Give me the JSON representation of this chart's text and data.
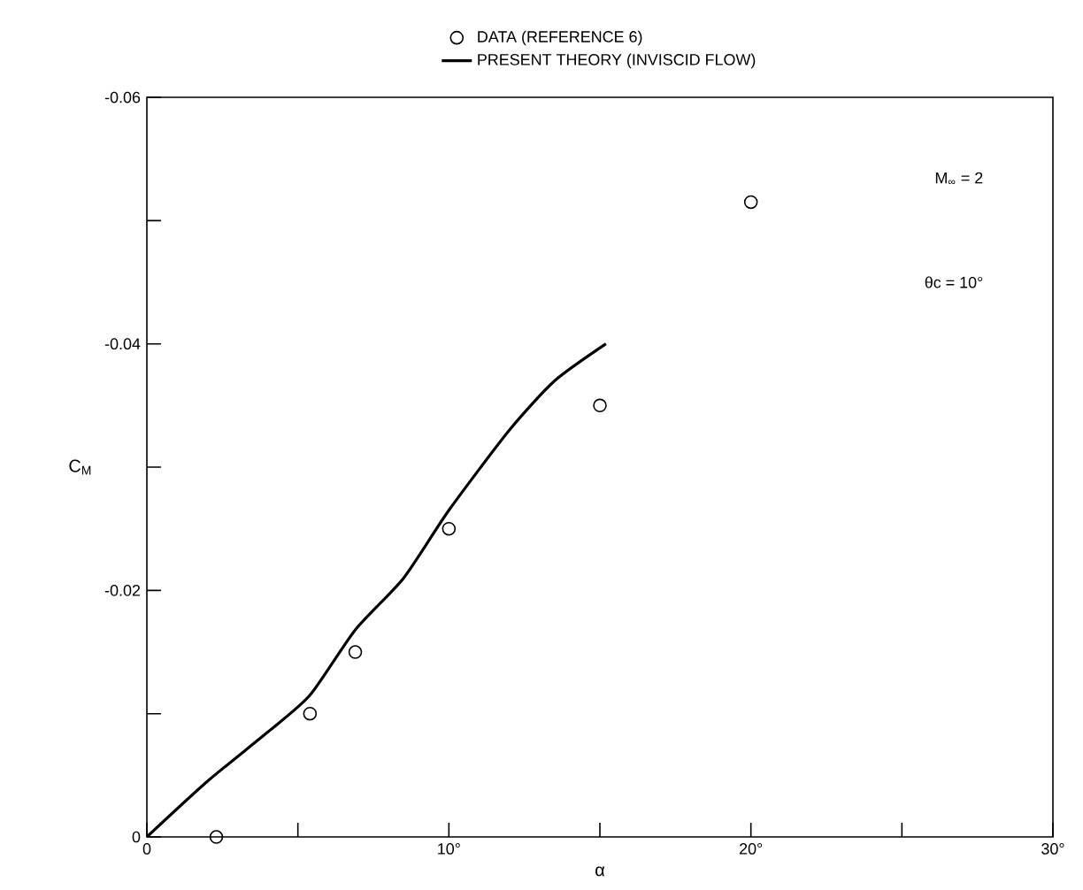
{
  "chart_data": {
    "type": "scatter",
    "xlabel": "α",
    "ylabel": "C$_{M}$",
    "annotations": [
      "M$_{∞}$ = 2",
      "θc = 10°"
    ],
    "series": [
      {
        "name": "DATA (REFERENCE 6)",
        "color": "#000000",
        "marker": "circle",
        "x": [
          2.3,
          5.4,
          6.9,
          10,
          15,
          20
        ],
        "values": [
          0,
          -0.01,
          -0.015,
          -0.025,
          -0.035,
          -0.0515
        ]
      },
      {
        "name": "PRESENT THEORY (INVISCID FLOW)",
        "type": "line",
        "color": "#000000",
        "marker": "none",
        "line_style": "solid",
        "x": [
          0,
          2,
          4,
          5.4,
          6.9,
          8.5,
          10,
          12,
          13.5,
          15.2
        ],
        "values": [
          0,
          -0.0045,
          -0.0085,
          -0.0115,
          -0.0168,
          -0.021,
          -0.0265,
          -0.033,
          -0.037,
          -0.04
        ]
      }
    ],
    "xlim": [
      0,
      30
    ],
    "ylim": [
      0,
      -0.06
    ],
    "xticks": [
      0,
      {
        "value": 5,
        "label": null
      },
      {
        "value": 10,
        "label": "10°"
      },
      {
        "value": 15,
        "label": null
      },
      {
        "value": 20,
        "label": "20°"
      },
      {
        "value": 25,
        "label": null
      },
      {
        "value": 30,
        "label": "30°"
      }
    ],
    "yticks": [
      0,
      {
        "value": -0.01,
        "label": null
      },
      -0.02,
      {
        "value": -0.03,
        "label": null
      },
      -0.04,
      {
        "value": -0.05,
        "label": null
      },
      -0.06
    ],
    "grid": false,
    "legend": "top"
  }
}
